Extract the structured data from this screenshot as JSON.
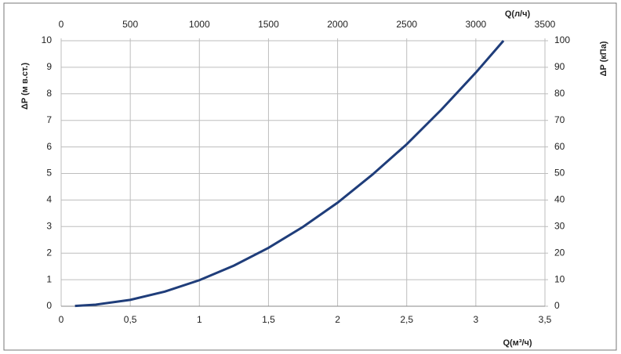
{
  "chart_data": {
    "type": "line",
    "x": [
      0.1,
      0.25,
      0.5,
      0.75,
      1,
      1.25,
      1.5,
      1.75,
      2,
      2.25,
      2.5,
      2.75,
      3,
      3.2
    ],
    "series": [
      {
        "color": "#1f3d7a",
        "values": [
          0.01,
          0.06,
          0.24,
          0.55,
          0.98,
          1.53,
          2.2,
          2.99,
          3.9,
          4.95,
          6.1,
          7.4,
          8.8,
          10
        ]
      }
    ],
    "xlabel": "Q(м³/ч)",
    "x2label": "Q(л/ч)",
    "ylabel": "ΔP (м в.ст.)",
    "y2label": "ΔP (кПа)",
    "xlim": [
      0,
      3.5
    ],
    "xticks": [
      0,
      {
        "value": 0.5,
        "label": "0,5"
      },
      1,
      {
        "value": 1.5,
        "label": "1,5"
      },
      2,
      {
        "value": 2.5,
        "label": "2,5"
      },
      3,
      {
        "value": 3.5,
        "label": "3,5"
      }
    ],
    "x2lim": [
      0,
      3500
    ],
    "x2ticks": [
      0,
      500,
      1000,
      1500,
      2000,
      2500,
      3000,
      3500
    ],
    "ylim": [
      0,
      10
    ],
    "yticks": [
      0,
      1,
      2,
      3,
      4,
      5,
      6,
      7,
      8,
      9,
      10
    ],
    "y2lim": [
      0,
      100
    ],
    "y2ticks": [
      0,
      10,
      20,
      30,
      40,
      50,
      60,
      70,
      80,
      90,
      100
    ],
    "grid": true
  }
}
